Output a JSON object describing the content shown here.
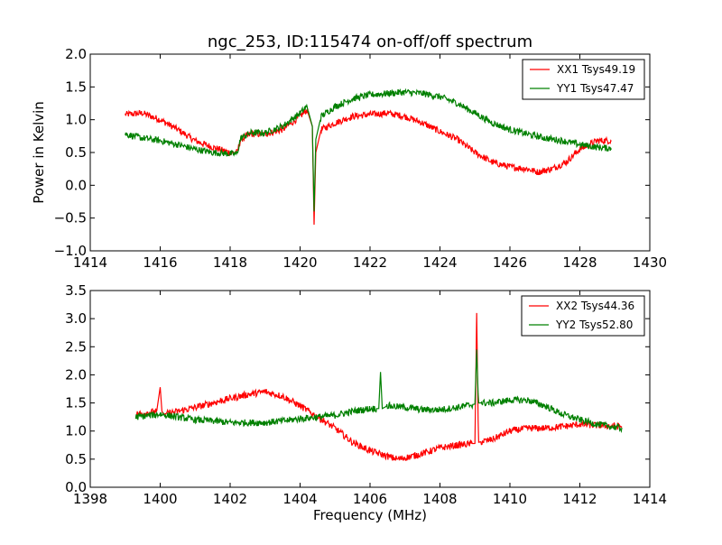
{
  "chart_data": [
    {
      "type": "line",
      "title": "ngc_253, ID:115474 on-off/off spectrum",
      "xlabel": "",
      "ylabel": "Power in Kelvin",
      "xlim": [
        1414,
        1430
      ],
      "ylim": [
        -1.0,
        2.0
      ],
      "xticks": [
        1414,
        1416,
        1418,
        1420,
        1422,
        1424,
        1426,
        1428,
        1430
      ],
      "yticks": [
        -1.0,
        -0.5,
        0.0,
        0.5,
        1.0,
        1.5,
        2.0
      ],
      "xtick_labels": [
        "1414",
        "1416",
        "1418",
        "1420",
        "1422",
        "1424",
        "1426",
        "1428",
        "1430"
      ],
      "ytick_labels": [
        "−1.0",
        "−0.5",
        "0.0",
        "0.5",
        "1.0",
        "1.5",
        "2.0"
      ],
      "grid": false,
      "legend_position": "top-right",
      "series": [
        {
          "name": "XX1 Tsys49.19",
          "color": "#ff0000",
          "noise": 0.05,
          "x": [
            1415.0,
            1415.5,
            1416.0,
            1416.5,
            1417.0,
            1417.5,
            1418.0,
            1418.2,
            1418.3,
            1418.6,
            1419.0,
            1419.5,
            1420.0,
            1420.2,
            1420.35,
            1420.4,
            1420.45,
            1420.6,
            1421.0,
            1421.5,
            1422.0,
            1422.5,
            1423.0,
            1423.5,
            1424.0,
            1424.5,
            1425.0,
            1425.5,
            1426.0,
            1426.5,
            1426.8,
            1427.2,
            1427.6,
            1428.0,
            1428.5,
            1428.9
          ],
          "y": [
            1.08,
            1.1,
            1.0,
            0.85,
            0.68,
            0.58,
            0.5,
            0.5,
            0.7,
            0.78,
            0.78,
            0.85,
            1.05,
            1.15,
            0.9,
            -0.6,
            0.5,
            0.85,
            0.95,
            1.05,
            1.08,
            1.1,
            1.05,
            0.95,
            0.82,
            0.7,
            0.5,
            0.35,
            0.28,
            0.25,
            0.2,
            0.25,
            0.35,
            0.55,
            0.68,
            0.68
          ]
        },
        {
          "name": "YY1 Tsys47.47",
          "color": "#008000",
          "noise": 0.05,
          "x": [
            1415.0,
            1415.5,
            1416.0,
            1416.5,
            1417.0,
            1417.5,
            1418.0,
            1418.2,
            1418.3,
            1418.6,
            1419.0,
            1419.5,
            1420.0,
            1420.2,
            1420.35,
            1420.4,
            1420.45,
            1420.6,
            1421.0,
            1421.5,
            1422.0,
            1422.5,
            1423.0,
            1423.5,
            1424.0,
            1424.5,
            1425.0,
            1425.5,
            1426.0,
            1426.5,
            1427.0,
            1427.5,
            1428.0,
            1428.5,
            1428.9
          ],
          "y": [
            0.78,
            0.72,
            0.68,
            0.62,
            0.55,
            0.5,
            0.48,
            0.48,
            0.72,
            0.8,
            0.8,
            0.9,
            1.1,
            1.2,
            0.9,
            -0.4,
            0.7,
            1.05,
            1.2,
            1.32,
            1.38,
            1.4,
            1.42,
            1.4,
            1.35,
            1.25,
            1.1,
            0.95,
            0.85,
            0.78,
            0.72,
            0.68,
            0.62,
            0.58,
            0.56
          ]
        }
      ]
    },
    {
      "type": "line",
      "title": "",
      "xlabel": "Frequency (MHz)",
      "ylabel": "",
      "xlim": [
        1398,
        1414
      ],
      "ylim": [
        0.0,
        3.5
      ],
      "xticks": [
        1398,
        1400,
        1402,
        1404,
        1406,
        1408,
        1410,
        1412,
        1414
      ],
      "yticks": [
        0.0,
        0.5,
        1.0,
        1.5,
        2.0,
        2.5,
        3.0,
        3.5
      ],
      "xtick_labels": [
        "1398",
        "1400",
        "1402",
        "1404",
        "1406",
        "1408",
        "1410",
        "1412",
        "1414"
      ],
      "ytick_labels": [
        "0.0",
        "0.5",
        "1.0",
        "1.5",
        "2.0",
        "2.5",
        "3.0",
        "3.5"
      ],
      "grid": false,
      "legend_position": "top-right",
      "series": [
        {
          "name": "XX2 Tsys44.36",
          "color": "#ff0000",
          "noise": 0.06,
          "x": [
            1399.3,
            1399.9,
            1400.0,
            1400.05,
            1400.1,
            1400.5,
            1401.0,
            1401.5,
            1402.0,
            1402.5,
            1403.0,
            1403.5,
            1404.0,
            1404.5,
            1405.0,
            1405.5,
            1406.0,
            1406.5,
            1406.8,
            1407.2,
            1407.6,
            1408.0,
            1408.5,
            1409.0,
            1409.05,
            1409.1,
            1409.5,
            1410.0,
            1410.5,
            1411.0,
            1411.5,
            1412.0,
            1412.5,
            1413.2
          ],
          "y": [
            1.3,
            1.35,
            1.78,
            1.35,
            1.3,
            1.35,
            1.42,
            1.5,
            1.58,
            1.65,
            1.7,
            1.62,
            1.45,
            1.25,
            1.05,
            0.8,
            0.65,
            0.55,
            0.5,
            0.55,
            0.62,
            0.7,
            0.75,
            0.78,
            3.1,
            0.8,
            0.85,
            1.0,
            1.05,
            1.05,
            1.08,
            1.12,
            1.1,
            1.08
          ]
        },
        {
          "name": "YY2 Tsys52.80",
          "color": "#008000",
          "noise": 0.06,
          "x": [
            1399.3,
            1400.0,
            1400.5,
            1401.0,
            1401.5,
            1402.0,
            1402.5,
            1403.0,
            1403.5,
            1404.0,
            1404.5,
            1405.0,
            1405.5,
            1406.0,
            1406.25,
            1406.3,
            1406.35,
            1406.5,
            1407.0,
            1407.5,
            1408.0,
            1408.5,
            1409.0,
            1409.05,
            1409.1,
            1409.5,
            1410.0,
            1410.5,
            1411.0,
            1411.5,
            1412.0,
            1412.5,
            1413.2
          ],
          "y": [
            1.25,
            1.3,
            1.25,
            1.2,
            1.18,
            1.15,
            1.15,
            1.15,
            1.18,
            1.22,
            1.25,
            1.28,
            1.35,
            1.4,
            1.4,
            2.05,
            1.4,
            1.45,
            1.42,
            1.38,
            1.38,
            1.42,
            1.48,
            2.45,
            1.5,
            1.5,
            1.55,
            1.55,
            1.45,
            1.3,
            1.2,
            1.12,
            1.05
          ]
        }
      ]
    }
  ]
}
